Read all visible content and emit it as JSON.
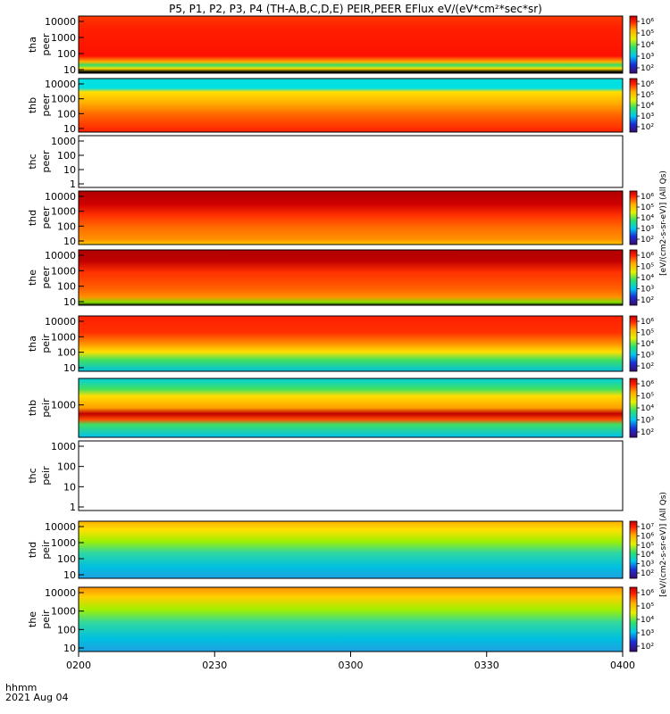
{
  "chart_data": {
    "type": "heatmap",
    "title": "P5, P1, P2, P3, P4 (TH-A,B,C,D,E) PEIR,PEER EFlux eV/(eV*cm²*sec*sr)",
    "x_axis": {
      "ticks": [
        "0200",
        "0230",
        "0300",
        "0330",
        "0400"
      ],
      "corner_label_1": "hhmm",
      "corner_label_2": "2021 Aug 04"
    },
    "colorbar_label_top": "[eV/(cm2-s-sr-eV)] (All Qs)",
    "colorbar_label_bottom": "[eV/(cm2-s-sr-eV)] (All Qs)",
    "panels": [
      {
        "id": "tha-peer",
        "probe": "tha",
        "species": "peer",
        "yticks": [
          "10000",
          "1000",
          "100",
          "10"
        ],
        "has_data": true,
        "cb_ticks": [
          "10⁶",
          "10⁵",
          "10⁴",
          "10³",
          "10²"
        ],
        "colorscale": "rainbow",
        "bands": "red-dominant with green/cyan band near 10-30 eV and fill line"
      },
      {
        "id": "thb-peer",
        "probe": "thb",
        "species": "peer",
        "yticks": [
          "10000",
          "1000",
          "100",
          "10"
        ],
        "has_data": true,
        "cb_ticks": [
          "10⁶",
          "10⁵",
          "10⁴",
          "10³",
          "10²"
        ],
        "colorscale": "rainbow",
        "bands": "cyan 2000-8000, yellow 300-2000, orange/red 10-300"
      },
      {
        "id": "thc-peer",
        "probe": "thc",
        "species": "peer",
        "yticks": [
          "1000",
          "100",
          "10",
          "1"
        ],
        "has_data": false
      },
      {
        "id": "thd-peer",
        "probe": "thd",
        "species": "peer",
        "yticks": [
          "10000",
          "1000",
          "100",
          "10"
        ],
        "has_data": true,
        "cb_ticks": [
          "10⁶",
          "10⁵",
          "10⁴",
          "10³",
          "10²"
        ],
        "colorscale": "rainbow",
        "bands": "dark red top, red/orange body"
      },
      {
        "id": "the-peer",
        "probe": "the",
        "species": "peer",
        "yticks": [
          "10000",
          "1000",
          "100",
          "10"
        ],
        "has_data": true,
        "cb_ticks": [
          "10⁶",
          "10⁵",
          "10⁴",
          "10³",
          "10²"
        ],
        "colorscale": "rainbow",
        "bands": "dark red top, red/orange body, green low"
      },
      {
        "id": "tha-peir",
        "probe": "tha",
        "species": "peir",
        "yticks": [
          "10000",
          "1000",
          "100",
          "10"
        ],
        "has_data": true,
        "cb_ticks": [
          "10⁶",
          "10⁵",
          "10⁴",
          "10³",
          "10²"
        ],
        "colorscale": "rainbow",
        "bands": "red top, yellow mid, green/cyan low"
      },
      {
        "id": "thb-peir",
        "probe": "thb",
        "species": "peir",
        "yticks": [
          "1000"
        ],
        "has_data": true,
        "cb_ticks": [
          "10⁶",
          "10⁵",
          "10⁴",
          "10³",
          "10²"
        ],
        "colorscale": "rainbow",
        "bands": "cyan top, yellow/orange mid, red band, cyan bottom"
      },
      {
        "id": "thc-peir",
        "probe": "thc",
        "species": "peir",
        "yticks": [
          "1000",
          "100",
          "10",
          "1"
        ],
        "has_data": false
      },
      {
        "id": "thd-peir",
        "probe": "thd",
        "species": "peir",
        "yticks": [
          "10000",
          "1000",
          "100",
          "10"
        ],
        "has_data": true,
        "cb_ticks": [
          "10⁷",
          "10⁶",
          "10⁵",
          "10⁴",
          "10³",
          "10²"
        ],
        "colorscale": "rainbow",
        "bands": "orange/yellow top, green/cyan body"
      },
      {
        "id": "the-peir",
        "probe": "the",
        "species": "peir",
        "yticks": [
          "10000",
          "1000",
          "100",
          "10"
        ],
        "has_data": true,
        "cb_ticks": [
          "10⁶",
          "10⁵",
          "10⁴",
          "10³",
          "10²"
        ],
        "colorscale": "rainbow",
        "bands": "orange/yellow top, green/cyan body"
      }
    ]
  }
}
